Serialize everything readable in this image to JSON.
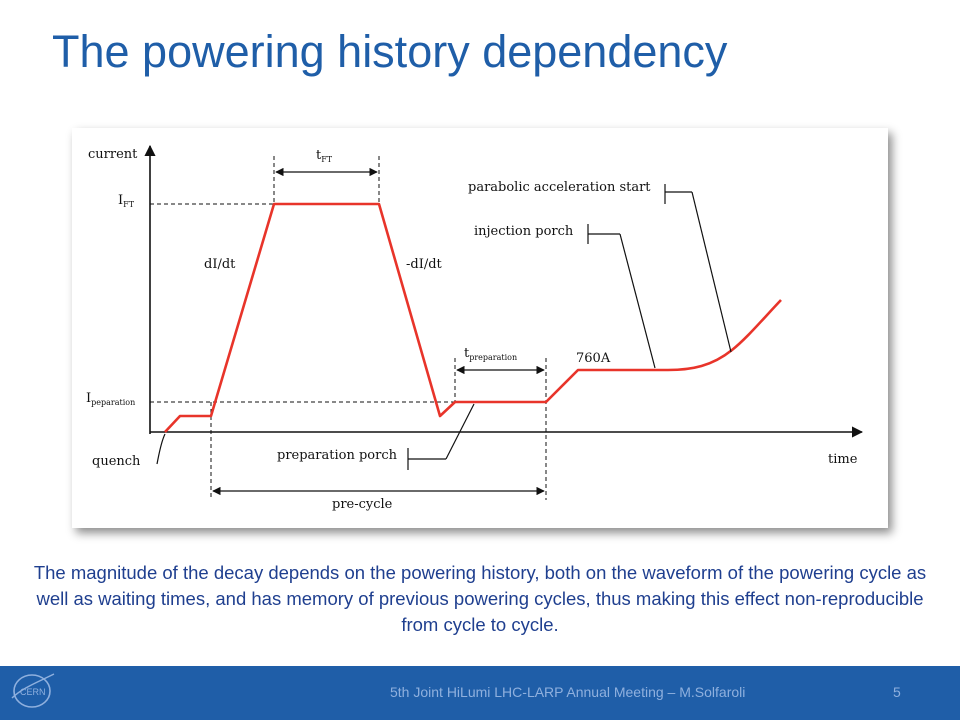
{
  "slide": {
    "title": "The powering history dependency",
    "caption": "The magnitude of the decay depends on the powering history, both on the waveform of the powering cycle as well as waiting times, and has memory of previous powering cycles, thus making this effect non-reproducible from cycle to cycle.",
    "footer": "5th Joint HiLumi LHC-LARP Annual Meeting – M.Solfaroli",
    "page_number": "5",
    "logo_text": "CERN"
  },
  "figure": {
    "y_axis_label": "current",
    "x_axis_label": "time",
    "i_ft_main": "I",
    "i_ft_sub": "FT",
    "i_prep_main": "I",
    "i_prep_sub": "peparation",
    "quench": "quench",
    "t_ft_main": "t",
    "t_ft_sub": "FT",
    "t_prep_main": "t",
    "t_prep_sub": "preparation",
    "ramp_up": "dI/dt",
    "ramp_down": "-dI/dt",
    "level_760": "760A",
    "parabolic": "parabolic acceleration start",
    "injection": "injection porch",
    "preparation_porch": "preparation porch",
    "precycle": "pre-cycle"
  },
  "colors": {
    "title": "#1f5ea8",
    "caption": "#1f3f8f",
    "footer_bar": "#1f5ea8",
    "footer_text": "#8fb0de",
    "curve": "#e8342a"
  }
}
